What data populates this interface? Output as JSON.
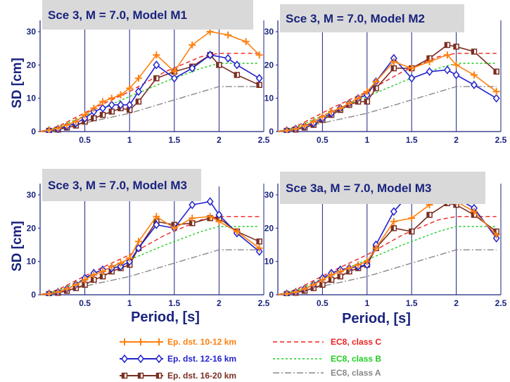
{
  "chart_data": [
    {
      "type": "line",
      "title": "Sce 3, M = 7.0, Model M1",
      "ylabel": "SD [cm]",
      "xlabel": "",
      "xlim": [
        0,
        2.5
      ],
      "ylim": [
        0,
        30
      ],
      "x_ticks": [
        "0.5",
        "1",
        "1.5",
        "2",
        "2.5"
      ],
      "y_ticks": [
        "0",
        "10",
        "20",
        "30"
      ],
      "series": [
        {
          "key": "ep1",
          "x": [
            0,
            0.1,
            0.2,
            0.3,
            0.4,
            0.5,
            0.6,
            0.7,
            0.8,
            0.9,
            1.0,
            1.1,
            1.3,
            1.5,
            1.7,
            1.9,
            2.1,
            2.3,
            2.45
          ],
          "y": [
            0,
            0.4,
            1,
            2,
            3,
            5,
            7,
            9,
            10,
            11,
            13,
            16,
            23,
            18,
            26,
            30,
            29,
            27,
            23
          ]
        },
        {
          "key": "ep2",
          "x": [
            0,
            0.1,
            0.2,
            0.3,
            0.4,
            0.5,
            0.6,
            0.7,
            0.8,
            0.9,
            1.0,
            1.1,
            1.3,
            1.5,
            1.7,
            1.9,
            2.1,
            2.2,
            2.45
          ],
          "y": [
            0,
            0.3,
            0.8,
            1.6,
            2.5,
            4,
            6,
            7,
            8,
            8,
            8,
            12,
            20,
            16,
            19,
            23,
            22,
            20,
            16
          ]
        },
        {
          "key": "ep3",
          "x": [
            0,
            0.1,
            0.2,
            0.3,
            0.4,
            0.5,
            0.6,
            0.7,
            0.8,
            0.9,
            1.0,
            1.1,
            1.3,
            1.5,
            1.7,
            1.9,
            2.0,
            2.2,
            2.45
          ],
          "y": [
            0,
            0.2,
            0.6,
            1.2,
            1.8,
            3,
            4,
            5,
            6,
            7,
            6.5,
            9,
            16,
            18,
            19.5,
            23,
            20,
            17,
            14
          ]
        },
        {
          "key": "c",
          "x": [
            0,
            0.2,
            0.6,
            1.0,
            1.4,
            1.8,
            2.0,
            2.45
          ],
          "y": [
            0,
            1.5,
            7,
            12,
            18,
            22.5,
            23.5,
            23.5
          ]
        },
        {
          "key": "b",
          "x": [
            0,
            0.2,
            0.6,
            1.0,
            1.4,
            1.8,
            2.0,
            2.45
          ],
          "y": [
            0,
            1.2,
            6,
            10.5,
            15,
            19,
            20.5,
            20.5
          ]
        },
        {
          "key": "a",
          "x": [
            0,
            0.4,
            1.0,
            1.5,
            2.0,
            2.45
          ],
          "y": [
            0,
            2,
            5.5,
            9.5,
            13.5,
            13.5
          ]
        }
      ]
    },
    {
      "type": "line",
      "title": "Sce 3, M = 7.0, Model M2",
      "ylabel": "",
      "xlabel": "",
      "xlim": [
        0,
        2.5
      ],
      "ylim": [
        0,
        30
      ],
      "x_ticks": [
        "0.5",
        "1",
        "1.5",
        "2",
        "2.5"
      ],
      "y_ticks": [
        "0",
        "10",
        "20",
        "30"
      ],
      "series": [
        {
          "key": "ep1",
          "x": [
            0,
            0.1,
            0.2,
            0.3,
            0.4,
            0.5,
            0.6,
            0.7,
            0.8,
            0.9,
            1.0,
            1.1,
            1.3,
            1.5,
            1.7,
            1.9,
            2.0,
            2.2,
            2.45
          ],
          "y": [
            0,
            0.3,
            0.8,
            1.8,
            3,
            4.5,
            6,
            7,
            8.5,
            10,
            12,
            15,
            21,
            19,
            21,
            23,
            20,
            17,
            12
          ]
        },
        {
          "key": "ep2",
          "x": [
            0,
            0.1,
            0.2,
            0.3,
            0.4,
            0.5,
            0.6,
            0.7,
            0.8,
            0.9,
            1.0,
            1.1,
            1.3,
            1.5,
            1.7,
            1.9,
            2.0,
            2.2,
            2.45
          ],
          "y": [
            0,
            0.3,
            0.8,
            1.6,
            2.5,
            4,
            5.5,
            7,
            8.5,
            10,
            11,
            15,
            22,
            16,
            18,
            18.5,
            17,
            14,
            10
          ]
        },
        {
          "key": "ep3",
          "x": [
            0,
            0.1,
            0.2,
            0.3,
            0.4,
            0.5,
            0.6,
            0.7,
            0.8,
            0.9,
            1.0,
            1.1,
            1.3,
            1.5,
            1.7,
            1.9,
            2.0,
            2.2,
            2.45
          ],
          "y": [
            0,
            0.2,
            0.6,
            1.2,
            2,
            3.5,
            5,
            6.5,
            8,
            9,
            9,
            13,
            19,
            19,
            22,
            26,
            25.5,
            24,
            18
          ]
        },
        {
          "key": "c",
          "x": [
            0,
            0.2,
            0.6,
            1.0,
            1.4,
            1.8,
            2.0,
            2.45
          ],
          "y": [
            0,
            1.5,
            7,
            12,
            18,
            22.5,
            23.5,
            23.5
          ]
        },
        {
          "key": "b",
          "x": [
            0,
            0.2,
            0.6,
            1.0,
            1.4,
            1.8,
            2.0,
            2.45
          ],
          "y": [
            0,
            1.2,
            6,
            10.5,
            15,
            19,
            20.5,
            20.5
          ]
        },
        {
          "key": "a",
          "x": [
            0,
            0.4,
            1.0,
            1.5,
            2.0,
            2.45
          ],
          "y": [
            0,
            2,
            5.5,
            9.5,
            13.5,
            13.5
          ]
        }
      ]
    },
    {
      "type": "line",
      "title": "Sce 3, M = 7.0, Model M3",
      "ylabel": "SD [cm]",
      "xlabel": "Period, [s]",
      "xlim": [
        0,
        2.5
      ],
      "ylim": [
        0,
        30
      ],
      "x_ticks": [
        "0.5",
        "1",
        "1.5",
        "2",
        "2.5"
      ],
      "y_ticks": [
        "0",
        "10",
        "20",
        "30"
      ],
      "series": [
        {
          "key": "ep1",
          "x": [
            0,
            0.1,
            0.2,
            0.3,
            0.4,
            0.5,
            0.6,
            0.7,
            0.8,
            0.9,
            1.0,
            1.1,
            1.3,
            1.5,
            1.7,
            1.9,
            2.0,
            2.2,
            2.45
          ],
          "y": [
            0,
            0.3,
            0.8,
            1.8,
            3,
            4.5,
            6,
            7,
            8.5,
            9.5,
            11,
            16,
            23.5,
            20,
            23,
            23.5,
            22,
            19,
            14
          ]
        },
        {
          "key": "ep2",
          "x": [
            0,
            0.1,
            0.2,
            0.3,
            0.4,
            0.5,
            0.6,
            0.7,
            0.8,
            0.9,
            1.0,
            1.1,
            1.3,
            1.5,
            1.7,
            1.9,
            2.0,
            2.2,
            2.45
          ],
          "y": [
            0,
            0.3,
            0.8,
            1.8,
            3,
            5,
            6.5,
            7.5,
            8,
            8.5,
            10,
            14,
            21,
            20,
            27,
            28,
            24,
            18.5,
            13
          ]
        },
        {
          "key": "ep3",
          "x": [
            0,
            0.1,
            0.2,
            0.3,
            0.4,
            0.5,
            0.6,
            0.7,
            0.8,
            0.9,
            1.0,
            1.1,
            1.3,
            1.5,
            1.7,
            1.9,
            2.0,
            2.2,
            2.45
          ],
          "y": [
            0,
            0.2,
            0.6,
            1.2,
            2,
            3,
            4.5,
            5.5,
            7,
            8,
            9,
            14,
            22,
            21,
            21.5,
            23,
            23,
            19,
            16
          ]
        },
        {
          "key": "c",
          "x": [
            0,
            0.2,
            0.6,
            1.0,
            1.4,
            1.8,
            2.0,
            2.45
          ],
          "y": [
            0,
            1.5,
            7,
            12,
            18,
            22.5,
            23.5,
            23.5
          ]
        },
        {
          "key": "b",
          "x": [
            0,
            0.2,
            0.6,
            1.0,
            1.4,
            1.8,
            2.0,
            2.45
          ],
          "y": [
            0,
            1.2,
            6,
            10.5,
            15,
            19,
            20.5,
            20.5
          ]
        },
        {
          "key": "a",
          "x": [
            0,
            0.4,
            1.0,
            1.5,
            2.0,
            2.45
          ],
          "y": [
            0,
            2,
            5.5,
            9.5,
            13.5,
            13.5
          ]
        }
      ]
    },
    {
      "type": "line",
      "title": "Sce 3a, M = 7.0, Model M3",
      "ylabel": "",
      "xlabel": "Period, [s]",
      "xlim": [
        0,
        2.5
      ],
      "ylim": [
        0,
        30
      ],
      "x_ticks": [
        "0.5",
        "1",
        "1.5",
        "2",
        "2.5"
      ],
      "y_ticks": [
        "0",
        "10",
        "20",
        "30"
      ],
      "series": [
        {
          "key": "ep1",
          "x": [
            0,
            0.1,
            0.2,
            0.3,
            0.4,
            0.5,
            0.6,
            0.7,
            0.8,
            0.9,
            1.0,
            1.1,
            1.3,
            1.5,
            1.7,
            1.9,
            2.0,
            2.2,
            2.45
          ],
          "y": [
            0,
            0.3,
            0.8,
            1.8,
            3,
            4.5,
            6,
            7,
            8,
            9,
            10,
            14,
            22,
            23,
            27,
            30,
            28,
            25,
            18
          ]
        },
        {
          "key": "ep2",
          "x": [
            0,
            0.1,
            0.2,
            0.3,
            0.4,
            0.5,
            0.6,
            0.7,
            0.8,
            0.9,
            1.0,
            1.1,
            1.3,
            1.5,
            1.7,
            1.85,
            2.0,
            2.2,
            2.45
          ],
          "y": [
            0,
            0.3,
            0.8,
            1.8,
            3,
            5,
            6.5,
            7.5,
            8,
            8.5,
            9,
            15,
            25,
            31,
            28,
            32,
            29,
            26,
            17
          ]
        },
        {
          "key": "ep3",
          "x": [
            0,
            0.1,
            0.2,
            0.3,
            0.4,
            0.5,
            0.6,
            0.7,
            0.8,
            0.9,
            1.0,
            1.1,
            1.3,
            1.5,
            1.7,
            1.9,
            2.0,
            2.2,
            2.45
          ],
          "y": [
            0,
            0.2,
            0.6,
            1.2,
            2,
            3,
            4.5,
            5.5,
            7,
            8,
            9,
            14,
            20,
            19,
            24,
            27.5,
            27,
            24,
            19
          ]
        },
        {
          "key": "c",
          "x": [
            0,
            0.2,
            0.6,
            1.0,
            1.4,
            1.8,
            2.0,
            2.45
          ],
          "y": [
            0,
            1.5,
            7,
            12,
            18,
            22.5,
            23.5,
            23.5
          ]
        },
        {
          "key": "b",
          "x": [
            0,
            0.2,
            0.6,
            1.0,
            1.4,
            1.8,
            2.0,
            2.45
          ],
          "y": [
            0,
            1.2,
            6,
            10.5,
            15,
            19,
            20.5,
            20.5
          ]
        },
        {
          "key": "a",
          "x": [
            0,
            0.4,
            1.0,
            1.5,
            2.0,
            2.45
          ],
          "y": [
            0,
            2,
            5.5,
            9.5,
            13.5,
            13.5
          ]
        }
      ]
    }
  ],
  "legend": [
    {
      "key": "ep1",
      "label": "Ep. dst. 10-12 km",
      "color": "#ff7f0e",
      "marker": "plus"
    },
    {
      "key": "ep2",
      "label": "Ep. dst. 12-16 km",
      "color": "#2222cc",
      "marker": "diamond"
    },
    {
      "key": "ep3",
      "label": "Ep. dst. 16-20 km",
      "color": "#7a2e22",
      "marker": "square"
    },
    {
      "key": "c",
      "label": "EC8, class C",
      "color": "#ee2222",
      "label_color": "#ee2222",
      "dash": "6,4"
    },
    {
      "key": "b",
      "label": "EC8, class B",
      "color": "#22cc22",
      "label_color": "#22cc22",
      "dash": "3,3"
    },
    {
      "key": "a",
      "label": "EC8, class A",
      "color": "#888888",
      "label_color": "#888888",
      "dash": "9,3,2,3"
    }
  ],
  "colors": {
    "axis": "#1a237e",
    "title_box": "#d9d9d9",
    "grid": "#1a237e"
  }
}
